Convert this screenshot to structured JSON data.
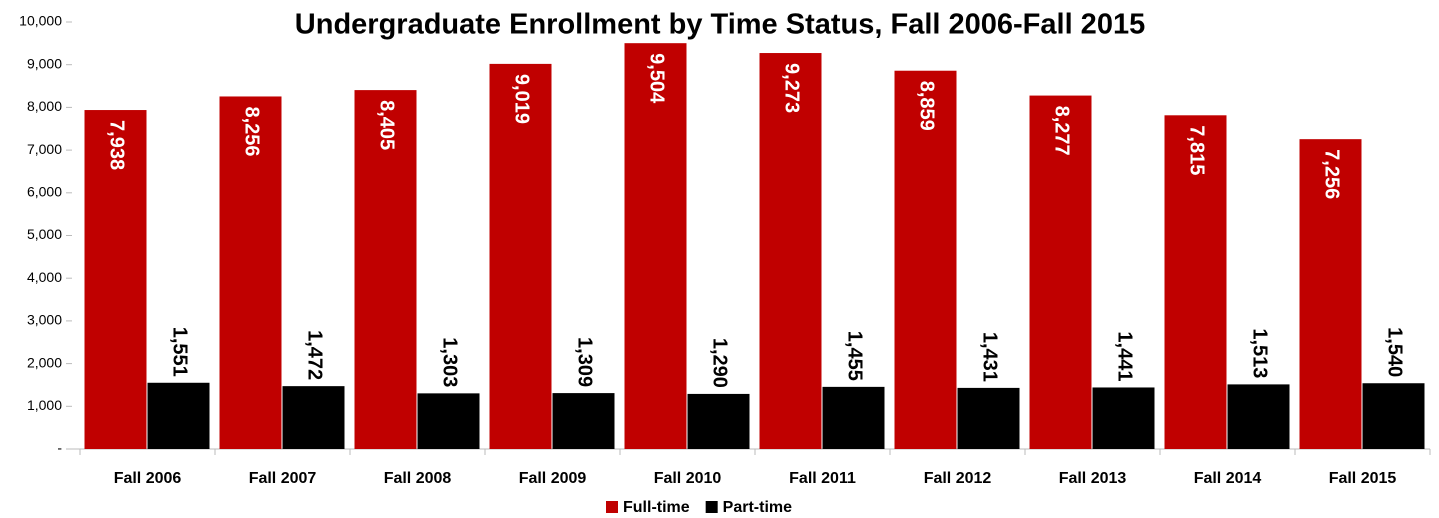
{
  "chart_data": {
    "type": "bar",
    "title": "Undergraduate Enrollment by Time Status, Fall 2006-Fall 2015",
    "categories": [
      "Fall 2006",
      "Fall 2007",
      "Fall 2008",
      "Fall 2009",
      "Fall 2010",
      "Fall 2011",
      "Fall 2012",
      "Fall 2013",
      "Fall 2014",
      "Fall 2015"
    ],
    "series": [
      {
        "name": "Full-time",
        "color": "#c00000",
        "values": [
          7938,
          8256,
          8405,
          9019,
          9504,
          9273,
          8859,
          8277,
          7815,
          7256
        ],
        "value_labels": [
          "7,938",
          "8,256",
          "8,405",
          "9,019",
          "9,504",
          "9,273",
          "8,859",
          "8,277",
          "7,815",
          "7,256"
        ]
      },
      {
        "name": "Part-time",
        "color": "#000000",
        "values": [
          1551,
          1472,
          1303,
          1309,
          1290,
          1455,
          1431,
          1441,
          1513,
          1540
        ],
        "value_labels": [
          "1,551",
          "1,472",
          "1,303",
          "1,309",
          "1,290",
          "1,455",
          "1,431",
          "1,441",
          "1,513",
          "1,540"
        ]
      }
    ],
    "ylim": [
      0,
      10000
    ],
    "yticks": [
      {
        "value": 0,
        "label": "-"
      },
      {
        "value": 1000,
        "label": "1,000"
      },
      {
        "value": 2000,
        "label": "2,000"
      },
      {
        "value": 3000,
        "label": "3,000"
      },
      {
        "value": 4000,
        "label": "4,000"
      },
      {
        "value": 5000,
        "label": "5,000"
      },
      {
        "value": 6000,
        "label": "6,000"
      },
      {
        "value": 7000,
        "label": "7,000"
      },
      {
        "value": 8000,
        "label": "8,000"
      },
      {
        "value": 9000,
        "label": "9,000"
      },
      {
        "value": 10000,
        "label": "10,000"
      }
    ],
    "legend": "bottom"
  }
}
